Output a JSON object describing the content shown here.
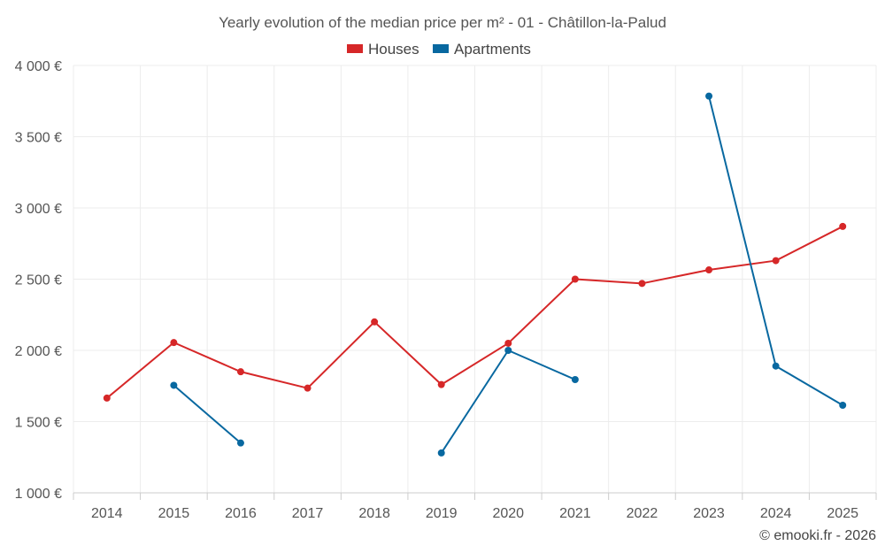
{
  "chart_data": {
    "type": "line",
    "title": "Yearly evolution of the median price per m² - 01 - Châtillon-la-Palud",
    "categories": [
      "2014",
      "2015",
      "2016",
      "2017",
      "2018",
      "2019",
      "2020",
      "2021",
      "2022",
      "2023",
      "2024",
      "2025"
    ],
    "y_ticks": [
      "1 000 €",
      "1 500 €",
      "2 000 €",
      "2 500 €",
      "3 000 €",
      "3 500 €",
      "4 000 €"
    ],
    "ylim": [
      1000,
      4000
    ],
    "grid": true,
    "legend_position": "top-center",
    "series": [
      {
        "name": "Houses",
        "color": "#d62728",
        "values": [
          1665,
          2055,
          1850,
          1735,
          2200,
          1760,
          2050,
          2500,
          2470,
          2565,
          2630,
          2870
        ]
      },
      {
        "name": "Apartments",
        "color": "#0868a0",
        "values": [
          null,
          1755,
          1350,
          null,
          null,
          1280,
          2000,
          1795,
          null,
          3785,
          1890,
          1615
        ]
      }
    ],
    "credit": "© emooki.fr - 2026"
  }
}
